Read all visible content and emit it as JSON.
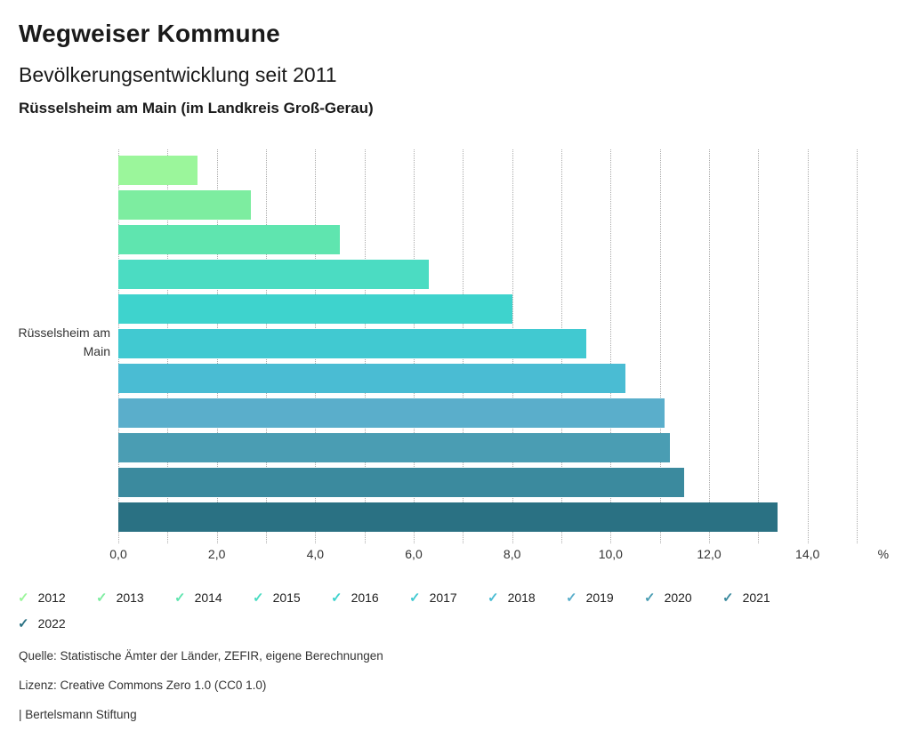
{
  "header": {
    "title": "Wegweiser Kommune",
    "subtitle": "Bevölkerungsentwicklung seit 2011",
    "region_line": "Rüsselsheim am Main (im Landkreis Groß-Gerau)"
  },
  "chart_data": {
    "type": "bar",
    "orientation": "horizontal",
    "title": "Bevölkerungsentwicklung seit 2011",
    "category_label_lines": [
      "Rüsselsheim am",
      "Main"
    ],
    "xlim": [
      0,
      15
    ],
    "gridline_step": 1,
    "xtick_step": 2,
    "xtick_labels": [
      "0,0",
      "2,0",
      "4,0",
      "6,0",
      "8,0",
      "10,0",
      "12,0",
      "14,0"
    ],
    "axis_unit_label": "%",
    "grid": "dotted-vertical",
    "legend_position": "bottom",
    "legend_icon": "check",
    "series": [
      {
        "name": "2012",
        "value": 1.6,
        "color": "#9bf69b"
      },
      {
        "name": "2013",
        "value": 2.7,
        "color": "#7deda0"
      },
      {
        "name": "2014",
        "value": 4.5,
        "color": "#5fe5af"
      },
      {
        "name": "2015",
        "value": 6.3,
        "color": "#4bdcc2"
      },
      {
        "name": "2016",
        "value": 8.0,
        "color": "#3ed3cd"
      },
      {
        "name": "2017",
        "value": 9.5,
        "color": "#41c9d1"
      },
      {
        "name": "2018",
        "value": 10.3,
        "color": "#4abcd3"
      },
      {
        "name": "2019",
        "value": 11.1,
        "color": "#5aaecb"
      },
      {
        "name": "2020",
        "value": 11.2,
        "color": "#4a9db3"
      },
      {
        "name": "2021",
        "value": 11.5,
        "color": "#3b8a9e"
      },
      {
        "name": "2022",
        "value": 13.4,
        "color": "#2a7183"
      }
    ]
  },
  "footer": {
    "source": "Quelle: Statistische Ämter der Länder, ZEFIR, eigene Berechnungen",
    "license": "Lizenz: Creative Commons Zero 1.0 (CC0 1.0)",
    "attribution": "| Bertelsmann Stiftung"
  }
}
